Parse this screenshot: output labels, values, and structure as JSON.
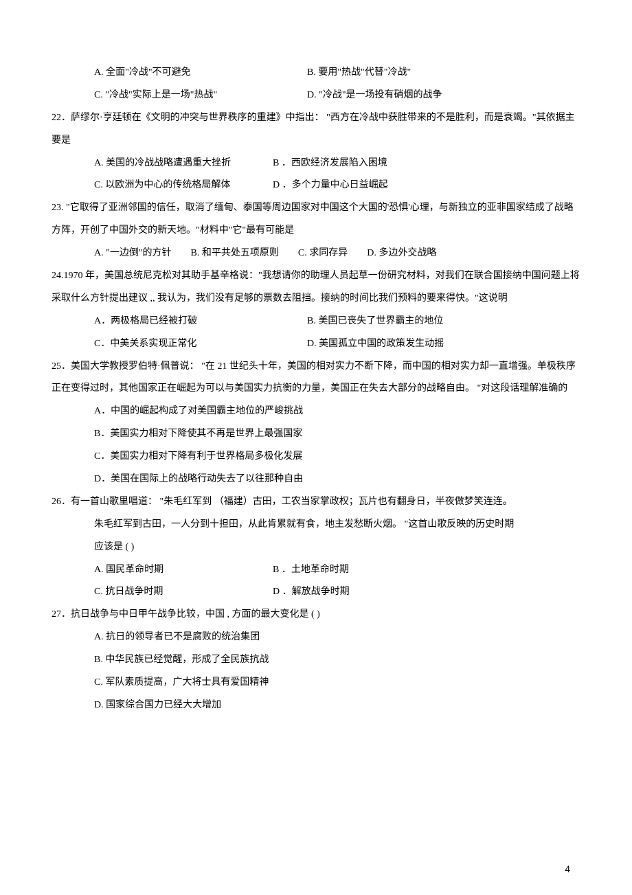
{
  "q21": {
    "A": "A.  全面\"冷战\"不可避免",
    "B": "B.  要用\"热战\"代替\"冷战\"",
    "C": "C. \"冷战\"实际上是一场\"热战\"",
    "D": "D. \"冷战\"是一场投有硝烟的战争"
  },
  "q22": {
    "stem": "22．萨缪尔·亨廷顿在《文明的冲突与世界秩序的重建》中指出：        \"西方在冷战中获胜带来的不是胜利，而是衰竭。\"其依据主要是",
    "A": "A.  美国的冷战战略遭遇重大挫折",
    "B": "B     ．西欧经济发展陷入困境",
    "C": "C.  以欧洲为中心的传统格局解体",
    "D": "D     ．多个力量中心日益崛起"
  },
  "q23": {
    "stem": "23. \"它取得了亚洲邻国的信任，取消了缅甸、泰国等周边国家对中国这个大国的'恐惧'心理，与新独立的亚非国家结成了战略方阵，开创了中国外交的新天地。\"材料中\"它\"最有可能是",
    "A": "A. \"一边倒\"的方针",
    "B": "B.  和平共处五项原则",
    "C": "C.    求同存异",
    "D": "D. 多边外交战略"
  },
  "q24": {
    "stem": "24.1970  年，美国总统尼克松对其助手基辛格说：\"我想请你的助理人员起草一份研究材料，对我们在联合国接纳中国问题上将采取什么方针提出建议    ,,  我认为，我们没有足够的票数去阻挡。接纳的时间比我们预料的要来得快。\"这说明",
    "A": "A．两极格局已经被打破",
    "B": "B.  美国已丧失了世界霸主的地位",
    "C": "C．中美关系实现正常化",
    "D": "D.  美国孤立中国的政策发生动摇"
  },
  "q25": {
    "stem": "25．美国大学教授罗伯特·佩普说：    \"在 21 世纪头十年，美国的相对实力不断下降，而中国的相对实力却一直增强。单极秩序正在变得过时，其他国家正在崛起为可以与美国实力抗衡的力量，美国正在失去大部分的战略自由。    \"对这段话理解准确的",
    "A": "A．中国的崛起构成了对美国霸主地位的严峻挑战",
    "B": "B．美国实力相对下降使其不再是世界上最强国家",
    "C": "C．美国实力相对下降有利于世界格局多极化发展",
    "D": "D．美国在国际上的战略行动失去了以往那种自由"
  },
  "q26": {
    "stem1": "26．有一首山歌里唱道：    \"朱毛红军到  （福建）古田，工农当家掌政权；瓦片也有翻身日，半夜做梦笑连连。",
    "stem2": "朱毛红军到古田，一人分到十担田，从此肯累就有食，地主发愁断火烟。          \"这首山歌反映的历史时期",
    "stem3": "应该是 (        )",
    "A": "A.  国民革命时期",
    "B": "B           ．土地革命时期",
    "C": "C.  抗日战争时期",
    "D": "D           ．解放战争时期"
  },
  "q27": {
    "stem": "27．抗日战争与中日甲午战争比较，中国    , 方面的最大变化是    (        )",
    "A": "A.  抗日的领导者已不是腐败的统治集团",
    "B": "B.  中华民族已经觉醒，形成了全民族抗战",
    "C": "C.  军队素质提高，广大将士具有爱国精神",
    "D": "D.  国家综合国力已经大大增加"
  },
  "pageNumber": "4"
}
